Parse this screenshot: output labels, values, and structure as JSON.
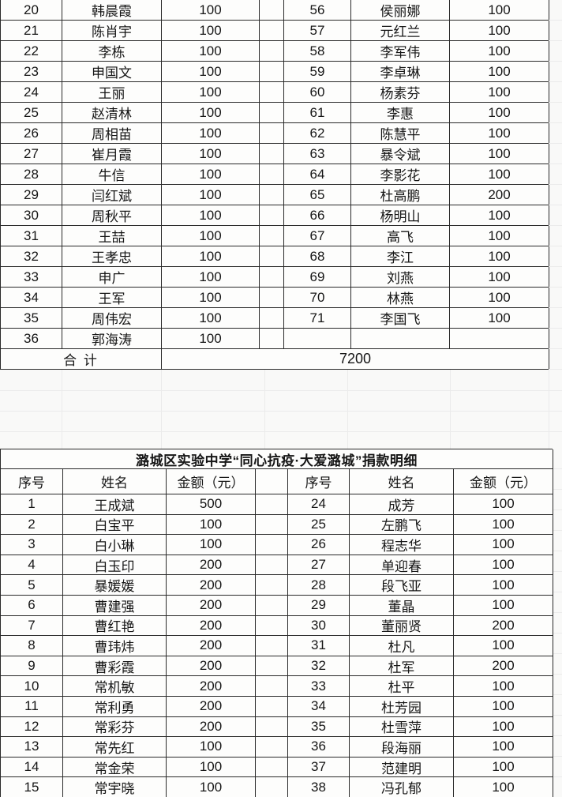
{
  "colors": {
    "table_border": "#2a2a2a",
    "faint_grid_line": "#ebebeb",
    "background": "#f9f9f8",
    "text": "#161616"
  },
  "table1": {
    "left_rows": [
      [
        "20",
        "韩晨霞",
        "100"
      ],
      [
        "21",
        "陈肖宇",
        "100"
      ],
      [
        "22",
        "李栋",
        "100"
      ],
      [
        "23",
        "申国文",
        "100"
      ],
      [
        "24",
        "王丽",
        "100"
      ],
      [
        "25",
        "赵清林",
        "100"
      ],
      [
        "26",
        "周相苗",
        "100"
      ],
      [
        "27",
        "崔月霞",
        "100"
      ],
      [
        "28",
        "牛信",
        "100"
      ],
      [
        "29",
        "闫红斌",
        "100"
      ],
      [
        "30",
        "周秋平",
        "100"
      ],
      [
        "31",
        "王喆",
        "100"
      ],
      [
        "32",
        "王孝忠",
        "100"
      ],
      [
        "33",
        "申广",
        "100"
      ],
      [
        "34",
        "王军",
        "100"
      ],
      [
        "35",
        "周伟宏",
        "100"
      ],
      [
        "36",
        "郭海涛",
        "100"
      ]
    ],
    "right_rows": [
      [
        "56",
        "侯丽娜",
        "100"
      ],
      [
        "57",
        "元红兰",
        "100"
      ],
      [
        "58",
        "李军伟",
        "100"
      ],
      [
        "59",
        "李卓琳",
        "100"
      ],
      [
        "60",
        "杨素芬",
        "100"
      ],
      [
        "61",
        "李惠",
        "100"
      ],
      [
        "62",
        "陈慧平",
        "100"
      ],
      [
        "63",
        "暴令斌",
        "100"
      ],
      [
        "64",
        "李影花",
        "100"
      ],
      [
        "65",
        "杜高鹏",
        "200"
      ],
      [
        "66",
        "杨明山",
        "100"
      ],
      [
        "67",
        "高飞",
        "100"
      ],
      [
        "68",
        "李江",
        "100"
      ],
      [
        "69",
        "刘燕",
        "100"
      ],
      [
        "70",
        "林燕",
        "100"
      ],
      [
        "71",
        "李国飞",
        "100"
      ]
    ],
    "total_label": "合 计",
    "total_value": "7200"
  },
  "table2": {
    "title": "潞城区实验中学“同心抗疫·大爱潞城”捐款明细",
    "headers": [
      "序号",
      "姓名",
      "金额（元）"
    ],
    "left_rows": [
      [
        "1",
        "王成斌",
        "500"
      ],
      [
        "2",
        "白宝平",
        "100"
      ],
      [
        "3",
        "白小琳",
        "100"
      ],
      [
        "4",
        "白玉印",
        "200"
      ],
      [
        "5",
        "暴媛媛",
        "200"
      ],
      [
        "6",
        "曹建强",
        "200"
      ],
      [
        "7",
        "曹红艳",
        "200"
      ],
      [
        "8",
        "曹玮炜",
        "200"
      ],
      [
        "9",
        "曹彩霞",
        "200"
      ],
      [
        "10",
        "常机敏",
        "200"
      ],
      [
        "11",
        "常利勇",
        "200"
      ],
      [
        "12",
        "常彩芬",
        "200"
      ],
      [
        "13",
        "常先红",
        "100"
      ],
      [
        "14",
        "常金荣",
        "100"
      ],
      [
        "15",
        "常宇晓",
        "100"
      ]
    ],
    "right_rows": [
      [
        "24",
        "成芳",
        "100"
      ],
      [
        "25",
        "左鹏飞",
        "100"
      ],
      [
        "26",
        "程志华",
        "100"
      ],
      [
        "27",
        "单迎春",
        "100"
      ],
      [
        "28",
        "段飞亚",
        "100"
      ],
      [
        "29",
        "董晶",
        "100"
      ],
      [
        "30",
        "董丽贤",
        "200"
      ],
      [
        "31",
        "杜凡",
        "100"
      ],
      [
        "32",
        "杜军",
        "200"
      ],
      [
        "33",
        "杜平",
        "100"
      ],
      [
        "34",
        "杜芳园",
        "100"
      ],
      [
        "35",
        "杜雪萍",
        "100"
      ],
      [
        "36",
        "段海丽",
        "100"
      ],
      [
        "37",
        "范建明",
        "100"
      ],
      [
        "38",
        "冯孔郁",
        "100"
      ]
    ]
  }
}
